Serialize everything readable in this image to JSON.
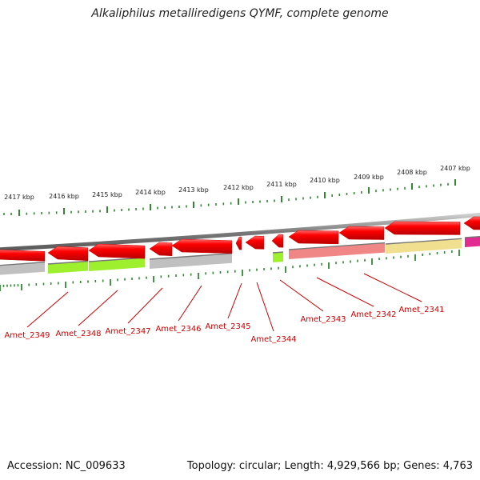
{
  "title": "Alkaliphilus metalliredigens QYMF, complete genome",
  "footer": {
    "accession": "Accession: NC_009633",
    "summary": "Topology: circular; Length: 4,929,566 bp; Genes: 4,763"
  },
  "colors": {
    "forward_strand_genes": "#ff0000",
    "backbone": "#808080",
    "tick": "#2f8a2f",
    "label": "#cc0000",
    "cog_gray": "#bdbdbd",
    "cog_green": "#99ee22",
    "cog_pink": "#f08080",
    "cog_yellow": "#eedd88",
    "cog_magenta": "#e0208a"
  },
  "scale_ticks": [
    {
      "label": "2417 kbp"
    },
    {
      "label": "2416 kbp"
    },
    {
      "label": "2415 kbp"
    },
    {
      "label": "2414 kbp"
    },
    {
      "label": "2413 kbp"
    },
    {
      "label": "2412 kbp"
    },
    {
      "label": "2411 kbp"
    },
    {
      "label": "2410 kbp"
    },
    {
      "label": "2409 kbp"
    },
    {
      "label": "2408 kbp"
    },
    {
      "label": "2407 kbp"
    }
  ],
  "genes": [
    {
      "label": "Amet_2349",
      "cog": "cog_gray"
    },
    {
      "label": "Amet_2348",
      "cog": "cog_green"
    },
    {
      "label": "Amet_2347",
      "cog": "cog_green"
    },
    {
      "label": "Amet_2346",
      "cog": "cog_gray"
    },
    {
      "label": "Amet_2345",
      "cog": "none"
    },
    {
      "label": "Amet_2344",
      "cog": "cog_green"
    },
    {
      "label": "Amet_2343",
      "cog": "cog_pink"
    },
    {
      "label": "Amet_2342",
      "cog": "cog_pink"
    },
    {
      "label": "Amet_2341",
      "cog": "cog_yellow"
    }
  ]
}
